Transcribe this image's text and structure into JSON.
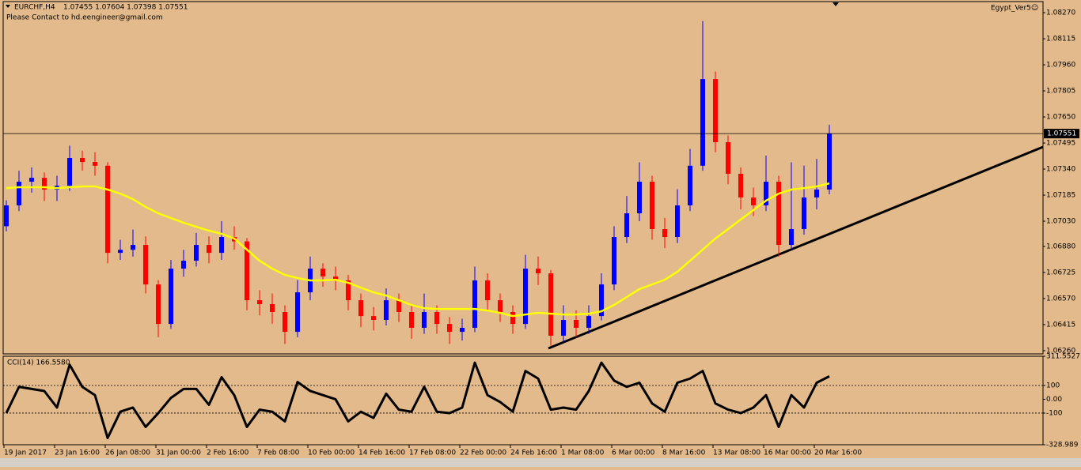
{
  "header": {
    "symbol": "EURCHF,H4",
    "quote": "1.07455 1.07604 1.07398 1.07551",
    "note": "Please Contact to hd.eengineer@gmail.com",
    "badge": "Egypt_Ver5☺"
  },
  "chart_data": [
    {
      "type": "candlestick",
      "title": "EURCHF,H4",
      "categories": [
        "19 Jan 2017",
        null,
        null,
        null,
        "23 Jan 16:00",
        null,
        null,
        null,
        "26 Jan 08:00",
        null,
        null,
        null,
        "31 Jan 00:00",
        null,
        null,
        null,
        "2 Feb 16:00",
        null,
        null,
        null,
        "7 Feb 08:00",
        null,
        null,
        null,
        "10 Feb 00:00",
        null,
        null,
        null,
        "14 Feb 16:00",
        null,
        null,
        null,
        "17 Feb 08:00",
        null,
        null,
        null,
        "22 Feb 00:00",
        null,
        null,
        null,
        "24 Feb 16:00",
        null,
        null,
        null,
        "1 Mar 08:00",
        null,
        null,
        null,
        "6 Mar 00:00",
        null,
        null,
        null,
        "8 Mar 16:00",
        null,
        null,
        null,
        "13 Mar 08:00",
        null,
        null,
        null,
        "16 Mar 00:00",
        null,
        null,
        null,
        "20 Mar 16:00",
        null
      ],
      "candles": [
        [
          1.07,
          1.07154,
          1.0697,
          1.07124
        ],
        [
          1.07124,
          1.0733,
          1.0709,
          1.07265
        ],
        [
          1.07265,
          1.0735,
          1.072,
          1.07288
        ],
        [
          1.07288,
          1.0732,
          1.0715,
          1.07218
        ],
        [
          1.07218,
          1.073,
          1.0715,
          1.07241
        ],
        [
          1.07241,
          1.0748,
          1.0721,
          1.07406
        ],
        [
          1.07406,
          1.0745,
          1.0733,
          1.07382
        ],
        [
          1.07382,
          1.0744,
          1.073,
          1.0736
        ],
        [
          1.0736,
          1.0738,
          1.0678,
          1.06842
        ],
        [
          1.06842,
          1.0692,
          1.068,
          1.0686
        ],
        [
          1.0686,
          1.0698,
          1.0682,
          1.06889
        ],
        [
          1.06889,
          1.0694,
          1.066,
          1.06654
        ],
        [
          1.06654,
          1.0668,
          1.0634,
          1.06419
        ],
        [
          1.06419,
          1.068,
          1.0639,
          1.06748
        ],
        [
          1.06748,
          1.0686,
          1.067,
          1.06795
        ],
        [
          1.06795,
          1.0696,
          1.0676,
          1.06889
        ],
        [
          1.06889,
          1.0694,
          1.0678,
          1.06842
        ],
        [
          1.06842,
          1.0703,
          1.068,
          1.06936
        ],
        [
          1.06936,
          1.07,
          1.0686,
          1.0691
        ],
        [
          1.0691,
          1.0693,
          1.065,
          1.0656
        ],
        [
          1.0656,
          1.0662,
          1.0647,
          1.06537
        ],
        [
          1.06537,
          1.066,
          1.0642,
          1.0649
        ],
        [
          1.0649,
          1.0653,
          1.063,
          1.06372
        ],
        [
          1.06372,
          1.0668,
          1.0634,
          1.06607
        ],
        [
          1.06607,
          1.0682,
          1.0656,
          1.06748
        ],
        [
          1.06748,
          1.0678,
          1.0664,
          1.06701
        ],
        [
          1.06701,
          1.0676,
          1.0662,
          1.06678
        ],
        [
          1.06678,
          1.0671,
          1.065,
          1.0656
        ],
        [
          1.0656,
          1.066,
          1.064,
          1.06466
        ],
        [
          1.06466,
          1.0652,
          1.0638,
          1.06443
        ],
        [
          1.06443,
          1.0663,
          1.0641,
          1.0656
        ],
        [
          1.0656,
          1.066,
          1.0643,
          1.0649
        ],
        [
          1.0649,
          1.0653,
          1.0633,
          1.06396
        ],
        [
          1.06396,
          1.066,
          1.0636,
          1.0649
        ],
        [
          1.0649,
          1.0653,
          1.0636,
          1.06419
        ],
        [
          1.06419,
          1.0646,
          1.063,
          1.06372
        ],
        [
          1.06372,
          1.0645,
          1.0632,
          1.06396
        ],
        [
          1.06396,
          1.0676,
          1.0637,
          1.06678
        ],
        [
          1.06678,
          1.0672,
          1.065,
          1.0656
        ],
        [
          1.0656,
          1.066,
          1.0643,
          1.0649
        ],
        [
          1.0649,
          1.0653,
          1.0636,
          1.06419
        ],
        [
          1.06419,
          1.0683,
          1.0639,
          1.06748
        ],
        [
          1.06748,
          1.0682,
          1.0665,
          1.0672
        ],
        [
          1.0672,
          1.0674,
          1.0629,
          1.06349
        ],
        [
          1.06349,
          1.0653,
          1.0631,
          1.06443
        ],
        [
          1.06443,
          1.065,
          1.0634,
          1.06396
        ],
        [
          1.06396,
          1.0653,
          1.0636,
          1.06466
        ],
        [
          1.06466,
          1.0672,
          1.0644,
          1.06654
        ],
        [
          1.06654,
          1.07,
          1.0662,
          1.06936
        ],
        [
          1.06936,
          1.0718,
          1.069,
          1.07077
        ],
        [
          1.07077,
          1.0738,
          1.0703,
          1.07265
        ],
        [
          1.07265,
          1.073,
          1.0692,
          1.06983
        ],
        [
          1.06983,
          1.0705,
          1.0687,
          1.06936
        ],
        [
          1.06936,
          1.0722,
          1.069,
          1.07124
        ],
        [
          1.07124,
          1.0746,
          1.0709,
          1.0736
        ],
        [
          1.0736,
          1.0822,
          1.0733,
          1.07875
        ],
        [
          1.07875,
          1.0792,
          1.0744,
          1.075
        ],
        [
          1.075,
          1.0754,
          1.0725,
          1.07312
        ],
        [
          1.07312,
          1.0735,
          1.071,
          1.07171
        ],
        [
          1.07171,
          1.0723,
          1.0706,
          1.07124
        ],
        [
          1.07124,
          1.0742,
          1.0709,
          1.07265
        ],
        [
          1.07265,
          1.073,
          1.0682,
          1.06889
        ],
        [
          1.06889,
          1.0738,
          1.0686,
          1.06983
        ],
        [
          1.06983,
          1.0736,
          1.0695,
          1.07171
        ],
        [
          1.07171,
          1.074,
          1.071,
          1.07218
        ],
        [
          1.07218,
          1.07604,
          1.0719,
          1.07551
        ]
      ],
      "up_color": "#0000ff",
      "down_color": "#ff0000",
      "overlay_color": "#ffff00",
      "overlay_values": [
        1.07227,
        1.07232,
        1.07232,
        1.07232,
        1.07227,
        1.07232,
        1.07237,
        1.07237,
        1.07218,
        1.07194,
        1.07161,
        1.07115,
        1.07077,
        1.07049,
        1.07021,
        1.06997,
        1.06974,
        1.06955,
        1.06927,
        1.06861,
        1.06795,
        1.06748,
        1.06711,
        1.06692,
        1.06678,
        1.06678,
        1.06682,
        1.06664,
        1.06635,
        1.06607,
        1.06588,
        1.0656,
        1.06532,
        1.06513,
        1.06508,
        1.06508,
        1.06508,
        1.06508,
        1.06499,
        1.06485,
        1.06466,
        1.06475,
        1.06485,
        1.0648,
        1.06475,
        1.06475,
        1.0648,
        1.06494,
        1.06532,
        1.06579,
        1.06626,
        1.06654,
        1.06682,
        1.06729,
        1.06795,
        1.06861,
        1.06927,
        1.06983,
        1.0704,
        1.07096,
        1.07152,
        1.07194,
        1.07218,
        1.07227,
        1.07237,
        1.07255
      ],
      "last_price": 1.07551,
      "ylim": [
        1.06241,
        1.08336
      ],
      "yticks": [
        {
          "value": 1.0827,
          "label": "1.08270"
        },
        1.08115,
        {
          "value": 1.0796,
          "label": "1.07960"
        },
        1.07805,
        {
          "value": 1.0765,
          "label": "1.07650"
        },
        1.07495,
        {
          "value": 1.0734,
          "label": "1.07340"
        },
        1.07185,
        {
          "value": 1.0703,
          "label": "1.07030"
        },
        {
          "value": 1.0688,
          "label": "1.06880"
        },
        1.06725,
        {
          "value": 1.0657,
          "label": "1.06570"
        },
        1.06415,
        {
          "value": 1.0626,
          "label": "1.06260"
        }
      ]
    },
    {
      "type": "line",
      "title": "CCI(14) 166.5580",
      "color": "#000000",
      "values": [
        -100,
        90,
        75,
        60,
        -60,
        250,
        90,
        30,
        -280,
        -90,
        -60,
        -200,
        -100,
        10,
        75,
        75,
        -40,
        160,
        30,
        -200,
        -75,
        -90,
        -160,
        125,
        60,
        30,
        0,
        -160,
        -90,
        -135,
        40,
        -75,
        -90,
        90,
        -90,
        -100,
        -60,
        265,
        30,
        -20,
        -90,
        205,
        150,
        -75,
        -60,
        -75,
        60,
        265,
        135,
        90,
        120,
        -30,
        -90,
        120,
        150,
        205,
        -30,
        -75,
        -100,
        -60,
        30,
        -200,
        30,
        -60,
        120,
        166.558
      ],
      "ylim": [
        -328.989,
        311.5527
      ],
      "yticks": [
        311.5527,
        100,
        {
          "value": 0,
          "label": "0.00"
        },
        -100,
        -328.989
      ],
      "levels": [
        100,
        -100
      ]
    }
  ]
}
